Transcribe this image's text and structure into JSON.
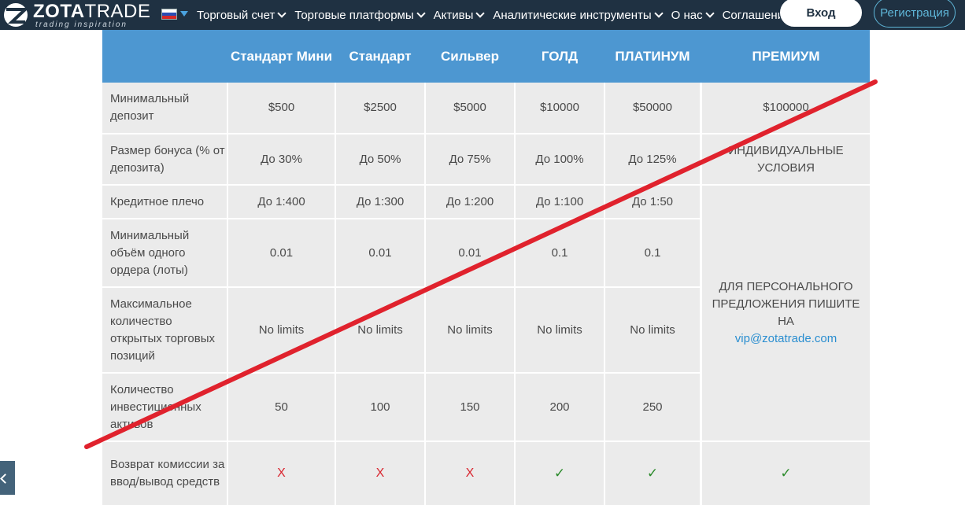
{
  "header": {
    "logo_bold": "ZOTA",
    "logo_light": "TRADE",
    "logo_tagline": "trading inspiration",
    "language_flag": "russia-flag",
    "nav": [
      "Торговый счет",
      "Торговые платформы",
      "Активы",
      "Аналитические инструменты",
      "О нас",
      "Соглашения"
    ],
    "login_label": "Вход",
    "register_label": "Регистрация"
  },
  "table": {
    "columns": [
      "Стандарт Мини",
      "Стандарт",
      "Сильвер",
      "ГОЛД",
      "ПЛАТИНУМ",
      "ПРЕМИУМ"
    ],
    "rows": [
      {
        "label": "Минимальный депозит",
        "values": [
          "$500",
          "$2500",
          "$5000",
          "$10000",
          "$50000",
          "$100000"
        ]
      },
      {
        "label": "Размер бонуса (% от депозита)",
        "values": [
          "До 30%",
          "До 50%",
          "До 75%",
          "До 100%",
          "До 125%",
          "ИНДИВИДУАЛЬНЫЕ УСЛОВИЯ"
        ]
      },
      {
        "label": "Кредитное плечо",
        "values": [
          "До 1:400",
          "До 1:300",
          "До 1:200",
          "До 1:100",
          "До 1:50"
        ]
      },
      {
        "label": "Минимальный объём одного ордера (лоты)",
        "values": [
          "0.01",
          "0.01",
          "0.01",
          "0.1",
          "0.1"
        ]
      },
      {
        "label": "Максимальное количество открытых торговых позиций",
        "values": [
          "No limits",
          "No limits",
          "No limits",
          "No limits",
          "No limits"
        ]
      },
      {
        "label": "Количество инвестиционных активов",
        "values": [
          "50",
          "100",
          "150",
          "200",
          "250"
        ]
      },
      {
        "label": "Возврат комиссии за ввод/вывод средств",
        "values": [
          "X",
          "X",
          "X",
          "✓",
          "✓",
          "✓"
        ]
      }
    ],
    "premium_note": "ДЛЯ ПЕРСОНАЛЬНОГО ПРЕДЛОЖЕНИЯ ПИШИТЕ НА",
    "premium_email": "vip@zotatrade.com"
  },
  "colors": {
    "topbar": "#1f3142",
    "table_header": "#4d97d1",
    "cell_bg": "#ebebeb",
    "strike_line": "#e0222d",
    "cross": "#d9252f",
    "check": "#2a8a2a"
  }
}
